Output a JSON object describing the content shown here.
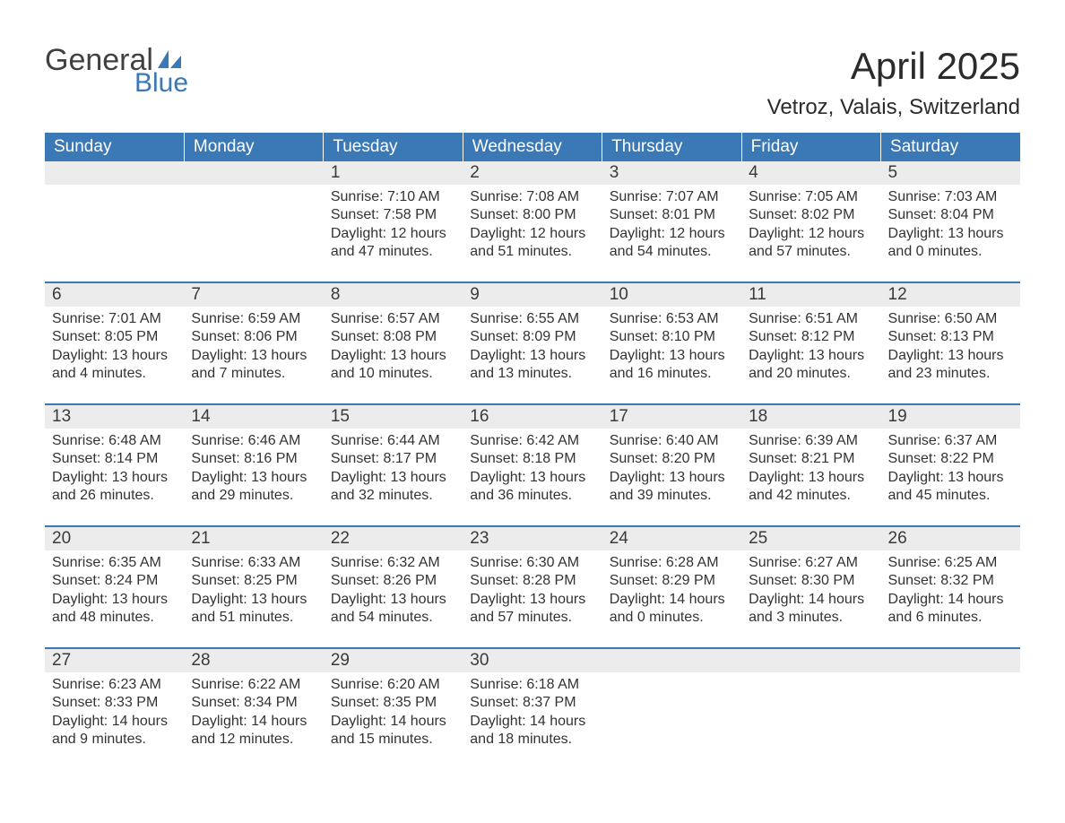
{
  "logo": {
    "word1": "General",
    "word2": "Blue"
  },
  "title": "April 2025",
  "location": "Vetroz, Valais, Switzerland",
  "colors": {
    "header_bg": "#3a78b6",
    "header_text": "#ffffff",
    "daynum_bg": "#ececec",
    "border": "#3a78b6",
    "text": "#333333",
    "logo_gray": "#404040",
    "logo_blue": "#3a78b6",
    "page_bg": "#ffffff"
  },
  "day_headers": [
    "Sunday",
    "Monday",
    "Tuesday",
    "Wednesday",
    "Thursday",
    "Friday",
    "Saturday"
  ],
  "labels": {
    "sunrise": "Sunrise:",
    "sunset": "Sunset:",
    "daylight": "Daylight:"
  },
  "weeks": [
    [
      null,
      null,
      {
        "day": "1",
        "sunrise": "7:10 AM",
        "sunset": "7:58 PM",
        "daylight": "12 hours and 47 minutes."
      },
      {
        "day": "2",
        "sunrise": "7:08 AM",
        "sunset": "8:00 PM",
        "daylight": "12 hours and 51 minutes."
      },
      {
        "day": "3",
        "sunrise": "7:07 AM",
        "sunset": "8:01 PM",
        "daylight": "12 hours and 54 minutes."
      },
      {
        "day": "4",
        "sunrise": "7:05 AM",
        "sunset": "8:02 PM",
        "daylight": "12 hours and 57 minutes."
      },
      {
        "day": "5",
        "sunrise": "7:03 AM",
        "sunset": "8:04 PM",
        "daylight": "13 hours and 0 minutes."
      }
    ],
    [
      {
        "day": "6",
        "sunrise": "7:01 AM",
        "sunset": "8:05 PM",
        "daylight": "13 hours and 4 minutes."
      },
      {
        "day": "7",
        "sunrise": "6:59 AM",
        "sunset": "8:06 PM",
        "daylight": "13 hours and 7 minutes."
      },
      {
        "day": "8",
        "sunrise": "6:57 AM",
        "sunset": "8:08 PM",
        "daylight": "13 hours and 10 minutes."
      },
      {
        "day": "9",
        "sunrise": "6:55 AM",
        "sunset": "8:09 PM",
        "daylight": "13 hours and 13 minutes."
      },
      {
        "day": "10",
        "sunrise": "6:53 AM",
        "sunset": "8:10 PM",
        "daylight": "13 hours and 16 minutes."
      },
      {
        "day": "11",
        "sunrise": "6:51 AM",
        "sunset": "8:12 PM",
        "daylight": "13 hours and 20 minutes."
      },
      {
        "day": "12",
        "sunrise": "6:50 AM",
        "sunset": "8:13 PM",
        "daylight": "13 hours and 23 minutes."
      }
    ],
    [
      {
        "day": "13",
        "sunrise": "6:48 AM",
        "sunset": "8:14 PM",
        "daylight": "13 hours and 26 minutes."
      },
      {
        "day": "14",
        "sunrise": "6:46 AM",
        "sunset": "8:16 PM",
        "daylight": "13 hours and 29 minutes."
      },
      {
        "day": "15",
        "sunrise": "6:44 AM",
        "sunset": "8:17 PM",
        "daylight": "13 hours and 32 minutes."
      },
      {
        "day": "16",
        "sunrise": "6:42 AM",
        "sunset": "8:18 PM",
        "daylight": "13 hours and 36 minutes."
      },
      {
        "day": "17",
        "sunrise": "6:40 AM",
        "sunset": "8:20 PM",
        "daylight": "13 hours and 39 minutes."
      },
      {
        "day": "18",
        "sunrise": "6:39 AM",
        "sunset": "8:21 PM",
        "daylight": "13 hours and 42 minutes."
      },
      {
        "day": "19",
        "sunrise": "6:37 AM",
        "sunset": "8:22 PM",
        "daylight": "13 hours and 45 minutes."
      }
    ],
    [
      {
        "day": "20",
        "sunrise": "6:35 AM",
        "sunset": "8:24 PM",
        "daylight": "13 hours and 48 minutes."
      },
      {
        "day": "21",
        "sunrise": "6:33 AM",
        "sunset": "8:25 PM",
        "daylight": "13 hours and 51 minutes."
      },
      {
        "day": "22",
        "sunrise": "6:32 AM",
        "sunset": "8:26 PM",
        "daylight": "13 hours and 54 minutes."
      },
      {
        "day": "23",
        "sunrise": "6:30 AM",
        "sunset": "8:28 PM",
        "daylight": "13 hours and 57 minutes."
      },
      {
        "day": "24",
        "sunrise": "6:28 AM",
        "sunset": "8:29 PM",
        "daylight": "14 hours and 0 minutes."
      },
      {
        "day": "25",
        "sunrise": "6:27 AM",
        "sunset": "8:30 PM",
        "daylight": "14 hours and 3 minutes."
      },
      {
        "day": "26",
        "sunrise": "6:25 AM",
        "sunset": "8:32 PM",
        "daylight": "14 hours and 6 minutes."
      }
    ],
    [
      {
        "day": "27",
        "sunrise": "6:23 AM",
        "sunset": "8:33 PM",
        "daylight": "14 hours and 9 minutes."
      },
      {
        "day": "28",
        "sunrise": "6:22 AM",
        "sunset": "8:34 PM",
        "daylight": "14 hours and 12 minutes."
      },
      {
        "day": "29",
        "sunrise": "6:20 AM",
        "sunset": "8:35 PM",
        "daylight": "14 hours and 15 minutes."
      },
      {
        "day": "30",
        "sunrise": "6:18 AM",
        "sunset": "8:37 PM",
        "daylight": "14 hours and 18 minutes."
      },
      null,
      null,
      null
    ]
  ]
}
